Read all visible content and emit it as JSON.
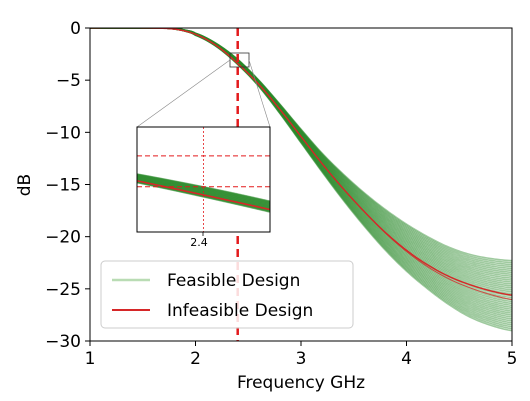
{
  "chart_data": {
    "type": "line",
    "title": "",
    "xlabel": "Frequency GHz",
    "ylabel": "dB",
    "xlim": [
      1,
      5
    ],
    "ylim": [
      -30,
      0
    ],
    "xticks": [
      1,
      2,
      3,
      4,
      5
    ],
    "yticks": [
      0,
      -5,
      -10,
      -15,
      -20,
      -25,
      -30
    ],
    "grid": false,
    "legend_placement": "lower-left",
    "legend": [
      {
        "label": "Feasible Design",
        "color": "#b9dcb4"
      },
      {
        "label": "Infeasible Design",
        "color": "#d62728"
      }
    ],
    "vline": {
      "x": 2.4,
      "color": "#e31a1c",
      "style": "dashed"
    },
    "series": [
      {
        "name": "Feasible Design",
        "color": "#2a8a2a",
        "band": true,
        "x": [
          1.0,
          1.5,
          1.7,
          1.8,
          1.9,
          2.0,
          2.2,
          2.4,
          2.6,
          2.8,
          3.0,
          3.2,
          3.4,
          3.6,
          3.8,
          4.0,
          4.2,
          4.4,
          4.6,
          4.8,
          5.0
        ],
        "upper": [
          0,
          0,
          0,
          -0.05,
          -0.2,
          -0.5,
          -1.5,
          -3.0,
          -5.0,
          -7.3,
          -9.7,
          -12.0,
          -14.0,
          -15.8,
          -17.4,
          -18.8,
          -20.0,
          -21.0,
          -21.7,
          -22.1,
          -22.3
        ],
        "lower": [
          0,
          0,
          0,
          -0.1,
          -0.3,
          -0.7,
          -1.8,
          -3.5,
          -5.6,
          -8.2,
          -11.0,
          -13.8,
          -16.5,
          -19.0,
          -21.3,
          -23.3,
          -25.0,
          -26.5,
          -27.7,
          -28.5,
          -29.0
        ]
      },
      {
        "name": "Infeasible Design",
        "color": "#d62728",
        "x": [
          1.0,
          1.5,
          1.8,
          2.0,
          2.2,
          2.4,
          2.6,
          2.8,
          3.0,
          3.2,
          3.4,
          3.6,
          3.8,
          4.0,
          4.2,
          4.4,
          4.6,
          4.8,
          5.0
        ],
        "values": [
          0,
          0,
          -0.1,
          -0.6,
          -1.7,
          -3.4,
          -5.4,
          -7.8,
          -10.4,
          -13.0,
          -15.4,
          -17.6,
          -19.6,
          -21.3,
          -22.7,
          -23.8,
          -24.6,
          -25.2,
          -25.6
        ]
      }
    ],
    "inset": {
      "xtick_label": "2.4",
      "hlines": [
        -1.5,
        -3.0
      ],
      "vline": 2.4
    }
  }
}
